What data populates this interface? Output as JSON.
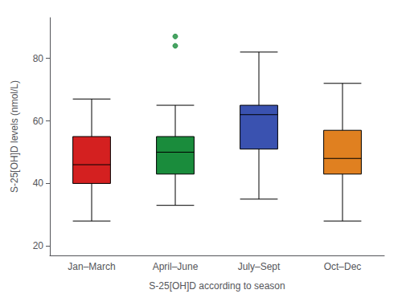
{
  "chart_data": {
    "type": "box",
    "xlabel": "S-25[OH]D according to season",
    "ylabel": "S-25[OH]D levels (nmol/L)",
    "categories": [
      "Jan–March",
      "April–June",
      "July–Sept",
      "Oct–Dec"
    ],
    "series": [
      {
        "type": "boxplot",
        "colors": [
          "#d42020",
          "#1a8c3c",
          "#3a52b0",
          "#e08020"
        ],
        "values": [
          {
            "whislo": 28,
            "q1": 40,
            "med": 46,
            "q3": 55,
            "whishi": 67
          },
          {
            "whislo": 33,
            "q1": 43,
            "med": 50,
            "q3": 55,
            "whishi": 65
          },
          {
            "whislo": 35,
            "q1": 51,
            "med": 62,
            "q3": 65,
            "whishi": 82
          },
          {
            "whislo": 28,
            "q1": 43,
            "med": 48,
            "q3": 57,
            "whishi": 72
          }
        ]
      },
      {
        "type": "scatter",
        "color": "#1a8c3c",
        "marker": "circle",
        "values": [
          [],
          [
            84,
            87
          ],
          [],
          []
        ]
      }
    ],
    "ylim": [
      17,
      93
    ],
    "yticks": [
      20,
      40,
      60,
      80
    ],
    "grid": false
  }
}
